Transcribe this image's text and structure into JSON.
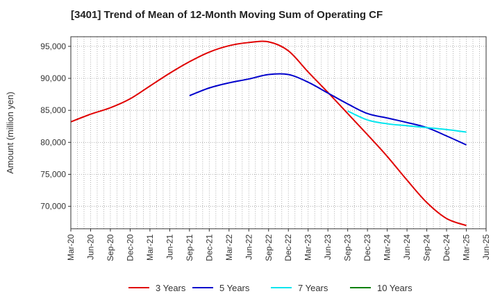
{
  "chart_data": {
    "type": "line",
    "title": "[3401]  Trend of Mean of 12-Month Moving Sum of Operating CF",
    "xlabel": "",
    "ylabel": "Amount (million yen)",
    "ylim": [
      66500,
      96500
    ],
    "yticks": [
      70000,
      75000,
      80000,
      85000,
      90000,
      95000
    ],
    "ytick_labels": [
      "70,000",
      "75,000",
      "80,000",
      "85,000",
      "90,000",
      "95,000"
    ],
    "categories": [
      "Mar-20",
      "Jun-20",
      "Sep-20",
      "Dec-20",
      "Mar-21",
      "Jun-21",
      "Sep-21",
      "Dec-21",
      "Mar-22",
      "Jun-22",
      "Sep-22",
      "Dec-22",
      "Mar-23",
      "Jun-23",
      "Sep-23",
      "Dec-23",
      "Mar-24",
      "Jun-24",
      "Sep-24",
      "Dec-24",
      "Mar-25",
      "Jun-25"
    ],
    "grid": true,
    "legend_position": "bottom",
    "series": [
      {
        "name": "3 Years",
        "color": "#e00000",
        "values": [
          83200,
          84400,
          85400,
          86800,
          88800,
          90800,
          92600,
          94100,
          95100,
          95600,
          95700,
          94300,
          91000,
          87800,
          84500,
          81200,
          77800,
          74100,
          70600,
          68100,
          67000,
          null
        ]
      },
      {
        "name": "5 Years",
        "color": "#0000cc",
        "values": [
          null,
          null,
          null,
          null,
          null,
          null,
          87300,
          88500,
          89300,
          89900,
          90600,
          90600,
          89400,
          87700,
          86000,
          84500,
          83800,
          83100,
          82300,
          81000,
          79600,
          null
        ]
      },
      {
        "name": "7 Years",
        "color": "#00e5ee",
        "values": [
          null,
          null,
          null,
          null,
          null,
          null,
          null,
          null,
          null,
          null,
          null,
          null,
          null,
          null,
          84900,
          83500,
          82900,
          82600,
          82300,
          82000,
          81600,
          null
        ]
      },
      {
        "name": "10 Years",
        "color": "#008000",
        "values": [
          null,
          null,
          null,
          null,
          null,
          null,
          null,
          null,
          null,
          null,
          null,
          null,
          null,
          null,
          null,
          null,
          null,
          null,
          null,
          null,
          null,
          null
        ]
      }
    ]
  }
}
